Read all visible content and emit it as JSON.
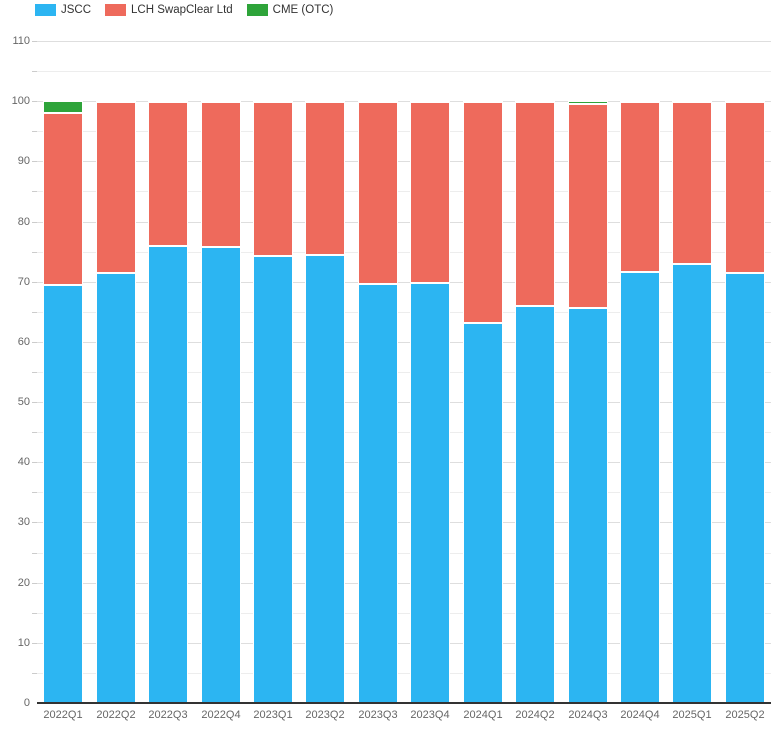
{
  "chart_data": {
    "type": "bar",
    "stacked": true,
    "title": "",
    "xlabel": "",
    "ylabel": "",
    "ylim": [
      0,
      110
    ],
    "y_major_step": 10,
    "y_minor_step": 5,
    "grid": true,
    "legend_position": "top-left",
    "categories": [
      "2022Q1",
      "2022Q2",
      "2022Q3",
      "2022Q4",
      "2023Q1",
      "2023Q2",
      "2023Q3",
      "2023Q4",
      "2024Q1",
      "2024Q2",
      "2024Q3",
      "2024Q4",
      "2025Q1",
      "2025Q2"
    ],
    "series": [
      {
        "name": "JSCC",
        "color": "#2cb5f2",
        "values": [
          69.4,
          71.5,
          76.0,
          75.8,
          74.2,
          74.4,
          69.6,
          69.8,
          63.2,
          66.0,
          65.6,
          71.7,
          73.0,
          71.5
        ]
      },
      {
        "name": "LCH SwapClear Ltd",
        "color": "#ee6a5c",
        "values": [
          28.6,
          28.35,
          23.85,
          24.05,
          25.65,
          25.45,
          30.25,
          30.05,
          36.65,
          33.85,
          34.0,
          28.1,
          26.8,
          28.3
        ]
      },
      {
        "name": "CME (OTC)",
        "color": "#2ea43a",
        "values": [
          2.0,
          0.15,
          0.15,
          0.15,
          0.15,
          0.15,
          0.15,
          0.15,
          0.15,
          0.15,
          0.4,
          0.2,
          0.2,
          0.2
        ]
      }
    ],
    "y_tick_labels": [
      "0",
      "10",
      "20",
      "30",
      "40",
      "50",
      "60",
      "70",
      "80",
      "90",
      "100",
      "110"
    ]
  },
  "colors": {
    "background": "#ffffff",
    "grid_major": "#dedede",
    "grid_minor": "#ededed",
    "axis_line": "#333333",
    "tick_label": "#666666",
    "legend_text": "#333333"
  }
}
